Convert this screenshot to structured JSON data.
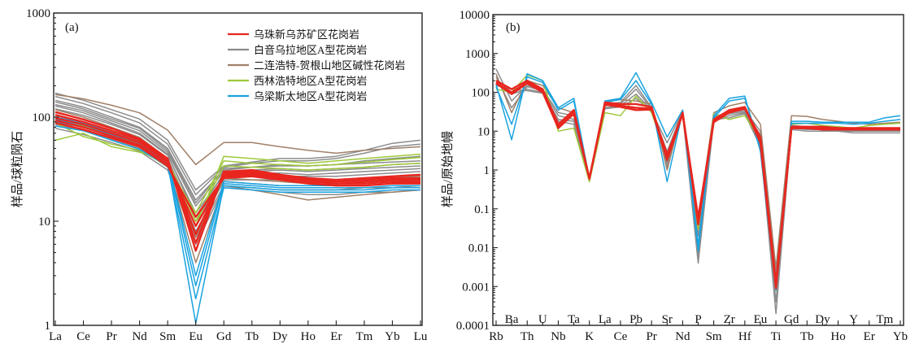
{
  "chart_data": [
    {
      "type": "line",
      "panel_label": "(a)",
      "ylabel": "样品/球粒陨石",
      "xlabel": "",
      "yscale": "log",
      "ylim": [
        1,
        1000
      ],
      "yticks": [
        "1",
        "10",
        "100",
        "1000"
      ],
      "categories": [
        "La",
        "Ce",
        "Pr",
        "Nd",
        "Sm",
        "Eu",
        "Gd",
        "Tb",
        "Dy",
        "Ho",
        "Er",
        "Tm",
        "Yb",
        "Lu"
      ],
      "legend": [
        {
          "name": "乌珠新乌苏矿区花岗岩",
          "color": "#e8261f"
        },
        {
          "name": "白音乌拉地区A型花岗岩",
          "color": "#8c8c8c"
        },
        {
          "name": "二连浩特-贺根山地区碱性花岗岩",
          "color": "#a08068"
        },
        {
          "name": "西林浩特地区A型花岗岩",
          "color": "#9dc93a"
        },
        {
          "name": "乌梁斯太地区A型花岗岩",
          "color": "#1aa3e0"
        }
      ],
      "series": [
        {
          "group": "白音乌拉地区A型花岗岩",
          "color": "#8c8c8c",
          "values": [
            170,
            145,
            118,
            96,
            60,
            20,
            34,
            37,
            40,
            40,
            42,
            48,
            56,
            60
          ]
        },
        {
          "group": "白音乌拉地区A型花岗岩",
          "color": "#8c8c8c",
          "values": [
            158,
            135,
            110,
            88,
            55,
            18,
            33,
            36,
            38,
            38,
            40,
            45,
            52,
            55
          ]
        },
        {
          "group": "白音乌拉地区A型花岗岩",
          "color": "#8c8c8c",
          "values": [
            145,
            125,
            100,
            80,
            50,
            16,
            31,
            33,
            35,
            34,
            35,
            38,
            40,
            42
          ]
        },
        {
          "group": "白音乌拉地区A型花岗岩",
          "color": "#8c8c8c",
          "values": [
            132,
            115,
            92,
            74,
            46,
            14,
            30,
            31,
            32,
            31,
            32,
            33,
            35,
            36
          ]
        },
        {
          "group": "白音乌拉地区A型花岗岩",
          "color": "#8c8c8c",
          "values": [
            120,
            104,
            85,
            68,
            43,
            12,
            28,
            29,
            29,
            28,
            29,
            30,
            31,
            32
          ]
        },
        {
          "group": "白音乌拉地区A型花岗岩",
          "color": "#8c8c8c",
          "values": [
            110,
            96,
            78,
            63,
            40,
            10,
            27,
            27,
            27,
            27,
            27,
            28,
            29,
            30
          ]
        },
        {
          "group": "白音乌拉地区A型花岗岩",
          "color": "#8c8c8c",
          "values": [
            100,
            88,
            72,
            58,
            37,
            9,
            25,
            25,
            25,
            25,
            25,
            26,
            27,
            27
          ]
        },
        {
          "group": "白音乌拉地区A型花岗岩",
          "color": "#8c8c8c",
          "values": [
            92,
            80,
            66,
            54,
            35,
            8,
            24,
            23,
            22,
            22,
            23,
            23,
            24,
            25
          ]
        },
        {
          "group": "白音乌拉地区A型花岗岩",
          "color": "#8c8c8c",
          "values": [
            85,
            74,
            61,
            50,
            33,
            7,
            22,
            21,
            20,
            20,
            20,
            21,
            21,
            22
          ]
        },
        {
          "group": "白音乌拉地区A型花岗岩",
          "color": "#8c8c8c",
          "values": [
            78,
            68,
            57,
            47,
            31,
            6,
            21,
            20,
            19,
            18,
            18,
            19,
            19,
            20
          ]
        },
        {
          "group": "白音乌拉地区A型花岗岩",
          "color": "#8c8c8c",
          "values": [
            128,
            110,
            88,
            70,
            44,
            11,
            29,
            30,
            31,
            30,
            31,
            32,
            33,
            34
          ]
        },
        {
          "group": "白音乌拉地区A型花岗岩",
          "color": "#8c8c8c",
          "values": [
            140,
            120,
            96,
            78,
            48,
            15,
            32,
            33,
            34,
            34,
            35,
            36,
            37,
            38
          ]
        },
        {
          "group": "二连浩特-贺根山地区碱性花岗岩",
          "color": "#a08068",
          "values": [
            165,
            150,
            130,
            110,
            75,
            35,
            57,
            57,
            52,
            48,
            45,
            48,
            50,
            52
          ]
        },
        {
          "group": "二连浩特-贺根山地区碱性花岗岩",
          "color": "#a08068",
          "values": [
            100,
            88,
            70,
            55,
            35,
            4,
            22,
            20,
            18,
            16,
            17,
            18,
            19,
            20
          ]
        },
        {
          "group": "二连浩特-贺根山地区碱性花岗岩",
          "color": "#a08068",
          "values": [
            118,
            100,
            80,
            64,
            40,
            7,
            26,
            25,
            24,
            23,
            24,
            25,
            26,
            27
          ]
        },
        {
          "group": "西林浩特地区A型花岗岩",
          "color": "#9dc93a",
          "values": [
            60,
            70,
            52,
            46,
            38,
            9,
            42,
            40,
            38,
            36,
            38,
            40,
            42,
            44
          ]
        },
        {
          "group": "西林浩特地区A型花岗岩",
          "color": "#9dc93a",
          "values": [
            88,
            65,
            55,
            48,
            34,
            12,
            38,
            36,
            35,
            34,
            35,
            37,
            39,
            41
          ]
        },
        {
          "group": "西林浩特地区A型花岗岩",
          "color": "#9dc93a",
          "values": [
            95,
            82,
            68,
            56,
            38,
            10,
            34,
            33,
            32,
            31,
            32,
            33,
            35,
            36
          ]
        },
        {
          "group": "乌梁斯太地区A型花岗岩",
          "color": "#1aa3e0",
          "values": [
            90,
            80,
            65,
            52,
            36,
            1.05,
            22,
            21,
            20,
            20,
            20,
            20,
            21,
            21
          ]
        },
        {
          "group": "乌梁斯太地区A型花岗岩",
          "color": "#1aa3e0",
          "values": [
            82,
            74,
            60,
            49,
            34,
            1.8,
            21,
            20,
            19,
            19,
            19,
            19,
            20,
            20
          ]
        },
        {
          "group": "乌梁斯太地区A型花岗岩",
          "color": "#1aa3e0",
          "values": [
            100,
            88,
            70,
            56,
            38,
            3,
            24,
            23,
            22,
            22,
            22,
            22,
            23,
            23
          ]
        },
        {
          "group": "乌梁斯太地区A型花岗岩",
          "color": "#1aa3e0",
          "values": [
            95,
            84,
            68,
            54,
            37,
            2.4,
            23,
            22,
            21,
            21,
            21,
            21,
            22,
            22
          ]
        },
        {
          "group": "乌珠新乌苏矿区花岗岩",
          "color": "#e8261f",
          "values": [
            112,
            95,
            78,
            62,
            40,
            5.2,
            30,
            31,
            28,
            26,
            25,
            26,
            27,
            28
          ]
        },
        {
          "group": "乌珠新乌苏矿区花岗岩",
          "color": "#e8261f",
          "values": [
            105,
            90,
            74,
            60,
            38,
            6.2,
            29,
            30,
            27,
            25,
            24,
            25,
            26,
            26
          ]
        },
        {
          "group": "乌珠新乌苏矿区花岗岩",
          "color": "#e8261f",
          "values": [
            98,
            85,
            70,
            57,
            37,
            7.5,
            28,
            29,
            26,
            24,
            23,
            24,
            25,
            25
          ]
        },
        {
          "group": "乌珠新乌苏矿区花岗岩",
          "color": "#e8261f",
          "values": [
            93,
            80,
            66,
            54,
            35,
            9,
            27,
            28,
            26,
            24,
            23,
            23,
            24,
            24
          ]
        },
        {
          "group": "乌珠新乌苏矿区花岗岩",
          "color": "#e8261f",
          "values": [
            88,
            76,
            63,
            52,
            34,
            11,
            26,
            27,
            25,
            23,
            22,
            22,
            23,
            23
          ]
        }
      ]
    },
    {
      "type": "line",
      "panel_label": "(b)",
      "ylabel": "样品/原始地幔",
      "xlabel": "",
      "yscale": "log",
      "ylim": [
        0.0001,
        10000
      ],
      "yticks": [
        "0.0001",
        "0.001",
        "0.01",
        "0.1",
        "1",
        "10",
        "100",
        "1000",
        "10000"
      ],
      "categories_bottom": [
        "Rb",
        "Th",
        "Nb",
        "K",
        "Ce",
        "Pr",
        "Nd",
        "Sm",
        "Hf",
        "Ti",
        "Tb",
        "Ho",
        "Er",
        "Yb"
      ],
      "categories_top": [
        "Ba",
        "U",
        "Ta",
        "La",
        "Pb",
        "Sr",
        "P",
        "Zr",
        "Eu",
        "Gd",
        "Dy",
        "Y",
        "Tm"
      ],
      "categories": [
        "Rb",
        "Ba",
        "Th",
        "U",
        "Nb",
        "Ta",
        "K",
        "La",
        "Ce",
        "Pb",
        "Pr",
        "Sr",
        "Nd",
        "P",
        "Sm",
        "Zr",
        "Hf",
        "Eu",
        "Ti",
        "Gd",
        "Tb",
        "Dy",
        "Ho",
        "Y",
        "Er",
        "Tm",
        "Yb"
      ],
      "series": [
        {
          "group": "白音乌拉地区A型花岗岩",
          "color": "#8c8c8c",
          "values": [
            400,
            60,
            150,
            120,
            30,
            25,
            0.55,
            50,
            55,
            150,
            40,
            1.5,
            28,
            0.004,
            18,
            25,
            30,
            5,
            0.0002,
            12,
            11,
            11,
            10,
            10,
            10,
            10,
            10
          ]
        },
        {
          "group": "白音乌拉地区A型花岗岩",
          "color": "#8c8c8c",
          "values": [
            250,
            40,
            140,
            110,
            25,
            20,
            0.55,
            45,
            50,
            120,
            38,
            1.2,
            30,
            0.006,
            20,
            22,
            28,
            4,
            0.0004,
            11,
            10,
            10,
            10,
            9,
            9,
            9,
            9
          ]
        },
        {
          "group": "白音乌拉地区A型花岗岩",
          "color": "#8c8c8c",
          "values": [
            180,
            90,
            120,
            100,
            20,
            18,
            0.6,
            40,
            45,
            90,
            35,
            3,
            32,
            0.01,
            22,
            28,
            32,
            8,
            0.001,
            13,
            12,
            12,
            11,
            11,
            11,
            11,
            11
          ]
        },
        {
          "group": "白音乌拉地区A型花岗岩",
          "color": "#8c8c8c",
          "values": [
            150,
            120,
            110,
            95,
            18,
            15,
            0.6,
            38,
            42,
            70,
            32,
            5,
            33,
            0.02,
            24,
            30,
            35,
            10,
            0.002,
            14,
            13,
            13,
            12,
            12,
            12,
            12,
            12
          ]
        },
        {
          "group": "二连浩特-贺根山地区碱性花岗岩",
          "color": "#a08068",
          "values": [
            300,
            30,
            200,
            150,
            40,
            30,
            0.5,
            60,
            65,
            60,
            50,
            1,
            35,
            0.05,
            30,
            45,
            55,
            15,
            0.003,
            25,
            24,
            20,
            18,
            16,
            15,
            16,
            17
          ]
        },
        {
          "group": "西林浩特地区A型花岗岩",
          "color": "#9dc93a",
          "values": [
            120,
            100,
            280,
            200,
            10,
            12,
            0.5,
            30,
            25,
            80,
            30,
            2,
            30,
            0.03,
            28,
            20,
            25,
            6,
            0.001,
            15,
            16,
            14,
            13,
            12,
            14,
            15,
            16
          ]
        },
        {
          "group": "乌梁斯太地区A型花岗岩",
          "color": "#1aa3e0",
          "values": [
            160,
            6,
            300,
            200,
            40,
            70,
            0.6,
            60,
            70,
            320,
            55,
            7,
            35,
            0.008,
            25,
            70,
            80,
            3,
            0.0008,
            18,
            18,
            17,
            17,
            17,
            17,
            22,
            25
          ]
        },
        {
          "group": "乌梁斯太地区A型花岗岩",
          "color": "#1aa3e0",
          "values": [
            140,
            15,
            250,
            180,
            35,
            60,
            0.6,
            55,
            65,
            200,
            50,
            0.5,
            32,
            0.012,
            22,
            60,
            70,
            4,
            0.0009,
            16,
            16,
            16,
            16,
            15,
            16,
            18,
            20
          ]
        },
        {
          "group": "乌珠新乌苏矿区花岗岩",
          "color": "#e8261f",
          "values": [
            200,
            120,
            200,
            120,
            15,
            35,
            0.6,
            55,
            50,
            50,
            42,
            2.2,
            30,
            0.05,
            20,
            35,
            42,
            6,
            0.001,
            13,
            13,
            13,
            12,
            12,
            12,
            12,
            12
          ]
        },
        {
          "group": "乌珠新乌苏矿区花岗岩",
          "color": "#e8261f",
          "values": [
            180,
            100,
            180,
            110,
            13,
            30,
            0.6,
            50,
            45,
            40,
            38,
            1.8,
            28,
            0.04,
            18,
            32,
            40,
            5,
            0.0009,
            12,
            12,
            12,
            12,
            11,
            11,
            11,
            11
          ]
        },
        {
          "group": "乌珠新乌苏矿区花岗岩",
          "color": "#e8261f",
          "values": [
            170,
            90,
            170,
            100,
            12,
            28,
            0.6,
            48,
            42,
            35,
            36,
            2.5,
            27,
            0.06,
            17,
            30,
            38,
            7,
            0.0012,
            12,
            12,
            11,
            11,
            11,
            11,
            11,
            11
          ]
        }
      ]
    }
  ]
}
